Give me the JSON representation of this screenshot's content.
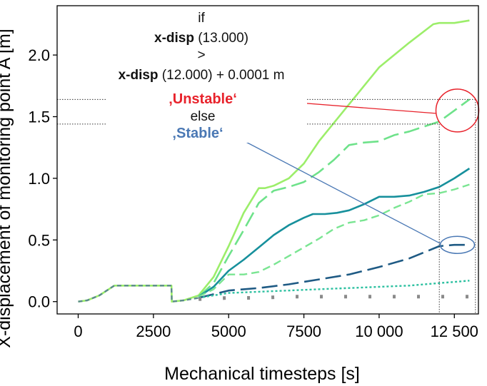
{
  "chart_data": {
    "type": "line",
    "xlabel": "Mechanical timesteps [s]",
    "ylabel": "X-displacement of monitoring point A [m]",
    "xlim": [
      -700,
      13300
    ],
    "ylim": [
      -0.1,
      2.4
    ],
    "xticks": [
      0,
      2500,
      5000,
      7500,
      10000,
      12500
    ],
    "xtick_labels": [
      "0",
      "2500",
      "5000",
      "7500",
      "10 000",
      "12 500"
    ],
    "yticks": [
      0.0,
      0.5,
      1.0,
      1.5,
      2.0
    ],
    "ytick_labels": [
      "0.0",
      "0.5",
      "1.0",
      "1.5",
      "2.0"
    ],
    "grid": false,
    "series": [
      {
        "color": "#9cee6a",
        "dash": "solid",
        "x": [
          0,
          300,
          700,
          1200,
          3100,
          3110,
          3500,
          4000,
          4500,
          5000,
          5500,
          6000,
          6200,
          6500,
          7000,
          7500,
          8000,
          9000,
          10000,
          11000,
          11800,
          12000,
          12500,
          13000
        ],
        "y": [
          0,
          0.01,
          0.05,
          0.13,
          0.13,
          0,
          0.01,
          0.05,
          0.2,
          0.45,
          0.72,
          0.92,
          0.92,
          0.94,
          1.0,
          1.12,
          1.3,
          1.6,
          1.9,
          2.1,
          2.25,
          2.26,
          2.26,
          2.28
        ]
      },
      {
        "color": "#6ee28a",
        "dash": "long",
        "x": [
          4000,
          4500,
          5000,
          5500,
          6000,
          6500,
          7000,
          7500,
          8000,
          8500,
          9000,
          9500,
          10000,
          10500,
          11000,
          11500,
          12000,
          12500,
          13000
        ],
        "y": [
          0.04,
          0.15,
          0.37,
          0.58,
          0.8,
          0.9,
          0.93,
          0.97,
          1.05,
          1.15,
          1.27,
          1.29,
          1.3,
          1.35,
          1.38,
          1.42,
          1.46,
          1.55,
          1.64
        ]
      },
      {
        "color": "#17909c",
        "dash": "solid",
        "x": [
          4000,
          4500,
          5000,
          5500,
          6000,
          6500,
          7000,
          7500,
          7800,
          8200,
          8600,
          9000,
          9500,
          10000,
          10500,
          11000,
          11500,
          12000,
          12500,
          13000
        ],
        "y": [
          0.04,
          0.12,
          0.25,
          0.34,
          0.44,
          0.54,
          0.62,
          0.68,
          0.71,
          0.71,
          0.72,
          0.74,
          0.79,
          0.85,
          0.85,
          0.86,
          0.89,
          0.93,
          1.0,
          1.08
        ]
      },
      {
        "color": "#7ae592",
        "dash": "medium",
        "x": [
          4000,
          4500,
          5000,
          5500,
          6000,
          6500,
          7000,
          7500,
          8000,
          8500,
          9000,
          9500,
          10000,
          10500,
          11000,
          11500,
          12000,
          12500,
          13000
        ],
        "y": [
          0.04,
          0.1,
          0.22,
          0.22,
          0.24,
          0.3,
          0.37,
          0.44,
          0.51,
          0.59,
          0.64,
          0.66,
          0.7,
          0.76,
          0.81,
          0.87,
          0.88,
          0.91,
          0.95
        ]
      },
      {
        "color": "#1e5a84",
        "dash": "long",
        "x": [
          4000,
          4500,
          5000,
          5500,
          6000,
          7000,
          8000,
          9000,
          10000,
          11000,
          11500,
          12000,
          12500,
          13000
        ],
        "y": [
          0.03,
          0.06,
          0.09,
          0.1,
          0.11,
          0.14,
          0.18,
          0.22,
          0.28,
          0.35,
          0.4,
          0.45,
          0.46,
          0.46
        ]
      },
      {
        "color": "#2cc0a0",
        "dash": "dotted",
        "x": [
          4000,
          5000,
          6000,
          7000,
          8000,
          9000,
          10000,
          11000,
          12000,
          12500,
          13000
        ],
        "y": [
          0.03,
          0.07,
          0.08,
          0.09,
          0.1,
          0.11,
          0.12,
          0.13,
          0.15,
          0.16,
          0.17
        ]
      },
      {
        "color": "#8a8a8a",
        "dash": "thick",
        "x": [
          4000,
          5000,
          6000,
          7000,
          8000,
          9000,
          10000,
          11000,
          12000,
          12500,
          13000
        ],
        "y": [
          0.02,
          0.03,
          0.03,
          0.04,
          0.04,
          0.04,
          0.04,
          0.04,
          0.04,
          0.04,
          0.04
        ]
      },
      {
        "color": "#5c8a8c",
        "dash": "short",
        "x": [
          0,
          300,
          700,
          1200,
          3100,
          3110,
          3500,
          4000
        ],
        "y": [
          0,
          0.01,
          0.05,
          0.13,
          0.13,
          0,
          0.01,
          0.03
        ]
      }
    ],
    "reference_lines": {
      "unstable_level": 1.64,
      "stable_level": 1.44,
      "t_start": 12000,
      "t_end": 13200
    },
    "circles": {
      "unstable": {
        "x": 12600,
        "y": 1.55
      },
      "stable": {
        "x": 12600,
        "y": 0.46
      }
    },
    "annotation": {
      "line1": "if",
      "line2_bold": "x-disp",
      "line2_rest": " (13.000)",
      "line3": ">",
      "line4_bold": "x-disp",
      "line4_rest": " (12.000) + 0.0001 m",
      "unstable": "‚Unstable‘",
      "else": "else",
      "stable": "‚Stable‘",
      "unstable_color": "#e8222b",
      "stable_color": "#4a78b4"
    }
  }
}
